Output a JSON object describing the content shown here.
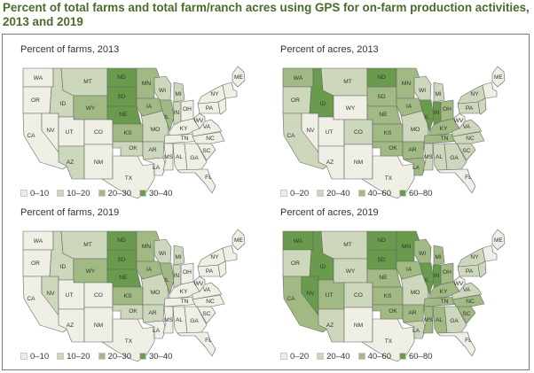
{
  "title": "Percent of total farms and total farm/ranch acres using GPS for on-farm production activities, 2013 and 2019",
  "colors": {
    "c1": "#efefe6",
    "c2": "#cdd7bb",
    "c3": "#a1b982",
    "c4": "#6a9a4c",
    "outline": "#666666"
  },
  "panels": [
    {
      "title": "Percent of farms, 2013",
      "legend": [
        {
          "label": "0–10",
          "color": "c1"
        },
        {
          "label": "10–20",
          "color": "c2"
        },
        {
          "label": "20–30",
          "color": "c3"
        },
        {
          "label": "30–40",
          "color": "c4"
        }
      ],
      "fills": {
        "WA": "c1",
        "OR": "c1",
        "CA": "c1",
        "NV": "c1",
        "ID": "c2",
        "MT": "c2",
        "WY": "c3",
        "UT": "c1",
        "CO": "c1",
        "AZ": "c2",
        "NM": "c1",
        "TX": "c1",
        "ND": "c4",
        "SD": "c4",
        "NE": "c4",
        "KS": "c3",
        "OK": "c2",
        "MN": "c3",
        "IA": "c3",
        "MO": "c2",
        "AR": "c2",
        "LA": "c1",
        "WI": "c2",
        "IL": "c3",
        "MI": "c2",
        "IN": "c2",
        "OH": "c1",
        "KY": "c1",
        "TN": "c1",
        "MS": "c1",
        "AL": "c1",
        "GA": "c1",
        "FL": "c1",
        "SC": "c1",
        "NC": "c1",
        "VA": "c1",
        "WV": "c1",
        "PA": "c1",
        "NY": "c1",
        "ME": "c1",
        "NE_REG": "c1",
        "MID": "c1"
      }
    },
    {
      "title": "Percent of acres, 2013",
      "legend": [
        {
          "label": "0–20",
          "color": "c1"
        },
        {
          "label": "20–40",
          "color": "c2"
        },
        {
          "label": "40–60",
          "color": "c3"
        },
        {
          "label": "60–80",
          "color": "c4"
        }
      ],
      "fills": {
        "WA": "c3",
        "OR": "c2",
        "CA": "c2",
        "NV": "c1",
        "ID": "c4",
        "MT": "c2",
        "WY": "c1",
        "UT": "c1",
        "CO": "c2",
        "AZ": "c1",
        "NM": "c1",
        "TX": "c1",
        "ND": "c4",
        "SD": "c3",
        "NE": "c3",
        "KS": "c3",
        "OK": "c3",
        "MN": "c3",
        "IA": "c3",
        "MO": "c2",
        "AR": "c3",
        "LA": "c3",
        "WI": "c2",
        "IL": "c4",
        "MI": "c2",
        "IN": "c4",
        "OH": "c3",
        "KY": "c3",
        "TN": "c3",
        "MS": "c2",
        "AL": "c2",
        "GA": "c2",
        "FL": "c1",
        "SC": "c2",
        "NC": "c2",
        "VA": "c2",
        "WV": "c1",
        "PA": "c2",
        "NY": "c2",
        "ME": "c1",
        "NE_REG": "c1",
        "MID": "c2"
      }
    },
    {
      "title": "Percent of farms, 2019",
      "legend": [
        {
          "label": "0–10",
          "color": "c1"
        },
        {
          "label": "10–20",
          "color": "c2"
        },
        {
          "label": "20–30",
          "color": "c3"
        },
        {
          "label": "30–40",
          "color": "c4"
        }
      ],
      "fills": {
        "WA": "c1",
        "OR": "c1",
        "CA": "c1",
        "NV": "c2",
        "ID": "c2",
        "MT": "c2",
        "WY": "c3",
        "UT": "c1",
        "CO": "c1",
        "AZ": "c1",
        "NM": "c1",
        "TX": "c1",
        "ND": "c4",
        "SD": "c4",
        "NE": "c4",
        "KS": "c3",
        "OK": "c2",
        "MN": "c3",
        "IA": "c3",
        "MO": "c2",
        "AR": "c2",
        "LA": "c1",
        "WI": "c2",
        "IL": "c3",
        "MI": "c2",
        "IN": "c2",
        "OH": "c1",
        "KY": "c1",
        "TN": "c1",
        "MS": "c1",
        "AL": "c1",
        "GA": "c1",
        "FL": "c1",
        "SC": "c1",
        "NC": "c1",
        "VA": "c1",
        "WV": "c1",
        "PA": "c1",
        "NY": "c1",
        "ME": "c1",
        "NE_REG": "c1",
        "MID": "c1"
      }
    },
    {
      "title": "Percent of acres, 2019",
      "legend": [
        {
          "label": "0–20",
          "color": "c1"
        },
        {
          "label": "20–40",
          "color": "c2"
        },
        {
          "label": "40–60",
          "color": "c3"
        },
        {
          "label": "60–80",
          "color": "c4"
        }
      ],
      "fills": {
        "WA": "c4",
        "OR": "c2",
        "CA": "c3",
        "NV": "c4",
        "ID": "c4",
        "MT": "c2",
        "WY": "c2",
        "UT": "c3",
        "CO": "c2",
        "AZ": "c2",
        "NM": "c1",
        "TX": "c1",
        "ND": "c4",
        "SD": "c4",
        "NE": "c3",
        "KS": "c3",
        "OK": "c3",
        "MN": "c4",
        "IA": "c3",
        "MO": "c2",
        "AR": "c3",
        "LA": "c2",
        "WI": "c3",
        "IL": "c4",
        "MI": "c3",
        "IN": "c4",
        "OH": "c3",
        "KY": "c3",
        "TN": "c3",
        "MS": "c3",
        "AL": "c3",
        "GA": "c2",
        "FL": "c1",
        "SC": "c3",
        "NC": "c3",
        "VA": "c2",
        "WV": "c1",
        "PA": "c2",
        "NY": "c2",
        "ME": "c1",
        "NE_REG": "c1",
        "MID": "c2"
      }
    }
  ],
  "state_labels": [
    "WA",
    "OR",
    "CA",
    "NV",
    "ID",
    "MT",
    "WY",
    "UT",
    "CO",
    "AZ",
    "NM",
    "TX",
    "ND",
    "SD",
    "NE",
    "KS",
    "OK",
    "MN",
    "IA",
    "MO",
    "AR",
    "LA",
    "WI",
    "IL",
    "MI",
    "IN",
    "OH",
    "KY",
    "TN",
    "MS",
    "AL",
    "GA",
    "FL",
    "SC",
    "NC",
    "VA",
    "WV",
    "PA",
    "NY",
    "ME"
  ]
}
